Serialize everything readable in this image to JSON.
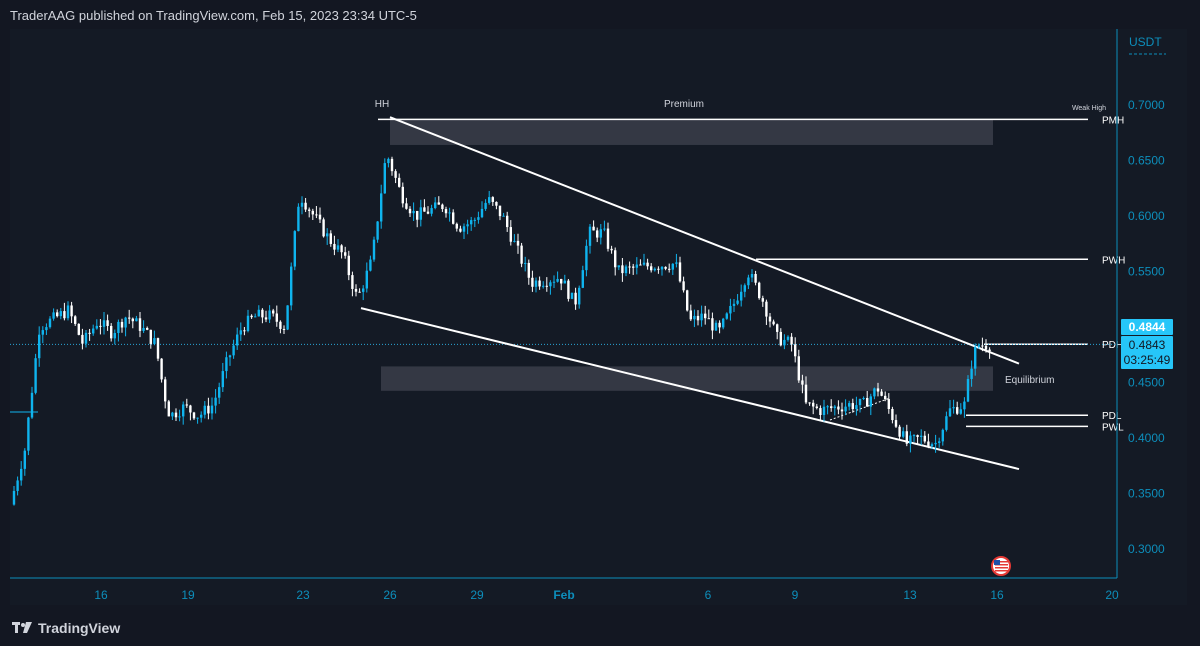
{
  "header": {
    "published_text": "TraderAAG published on TradingView.com, Feb 15, 2023 23:34 UTC-5"
  },
  "footer": {
    "brand": "TradingView",
    "logo_icon": "tradingview-logo-icon"
  },
  "colors": {
    "background": "#131722",
    "axis": "#0d8ebb",
    "up_candle": "#0fb4ee",
    "down_candle": "#ffffff",
    "last_price_bg": "#26c6f9",
    "zone_fill": "#3a3e4a",
    "line": "#ffffff",
    "text": "#d1d4dc"
  },
  "chart_data": {
    "type": "candlestick",
    "symbol_currency": "USDT",
    "timeframe_note": "2-hour candles (approx. 12 per day)",
    "ylim": [
      0.27,
      0.74
    ],
    "y_ticks": [
      "0.7000",
      "0.6500",
      "0.6000",
      "0.5500",
      "0.5000",
      "0.4500",
      "0.4000",
      "0.3500",
      "0.3000"
    ],
    "x_ticks": [
      "16",
      "19",
      "23",
      "26",
      "29",
      "Feb",
      "6",
      "9",
      "13",
      "16",
      "20"
    ],
    "grid": false,
    "last_price": "0.4844",
    "current_price": "0.4843",
    "countdown": "03:25:49",
    "horizontal_levels": [
      {
        "label": "PMH",
        "price": 0.687
      },
      {
        "label": "PWH",
        "price": 0.561
      },
      {
        "label": "PDH",
        "price": 0.4845
      },
      {
        "label": "PDL",
        "price": 0.4205
      },
      {
        "label": "PWL",
        "price": 0.4105
      }
    ],
    "zones": [
      {
        "top": 0.687,
        "bottom": 0.664,
        "from": "Jan 26",
        "to": "Feb 15"
      },
      {
        "top": 0.4645,
        "bottom": 0.4425,
        "from": "Jan 25",
        "to": "Feb 15"
      }
    ],
    "annotations": [
      "HH",
      "Premium",
      "Weak High",
      "Equilibrium"
    ],
    "trendlines": [
      {
        "name": "upper",
        "from": [
          "Jan 26",
          0.689
        ],
        "to": [
          "Feb 16",
          0.467
        ]
      },
      {
        "name": "lower",
        "from": [
          "Jan 25",
          0.517
        ],
        "to": [
          "Feb 16",
          0.372
        ]
      }
    ],
    "timeline": [
      [
        "Jan 13",
        0.34
      ],
      [
        "Jan 13.5",
        0.39
      ],
      [
        "Jan 14",
        0.5
      ],
      [
        "Jan 15",
        0.515
      ],
      [
        "Jan 15.5",
        0.485
      ],
      [
        "Jan 16",
        0.505
      ],
      [
        "Jan 16.5",
        0.495
      ],
      [
        "Jan 17",
        0.51
      ],
      [
        "Jan 17.5",
        0.5
      ],
      [
        "Jan 18",
        0.485
      ],
      [
        "Jan 18.3",
        0.44
      ],
      [
        "Jan 18.5",
        0.42
      ],
      [
        "Jan 19",
        0.428
      ],
      [
        "Jan 19.5",
        0.42
      ],
      [
        "Jan 20",
        0.43
      ],
      [
        "Jan 20.5",
        0.47
      ],
      [
        "Jan 21",
        0.5
      ],
      [
        "Jan 21.5",
        0.51
      ],
      [
        "Jan 22",
        0.51
      ],
      [
        "Jan 22.5",
        0.5
      ],
      [
        "Jan 23",
        0.62
      ],
      [
        "Jan 23.5",
        0.6
      ],
      [
        "Jan 24",
        0.58
      ],
      [
        "Jan 24.5",
        0.565
      ],
      [
        "Jan 25",
        0.525
      ],
      [
        "Jan 25.5",
        0.56
      ],
      [
        "Jan 26",
        0.657
      ],
      [
        "Jan 26.5",
        0.62
      ],
      [
        "Jan 27",
        0.6
      ],
      [
        "Jan 28",
        0.61
      ],
      [
        "Jan 28.5",
        0.59
      ],
      [
        "Jan 29",
        0.595
      ],
      [
        "Jan 29.5",
        0.615
      ],
      [
        "Jan 30",
        0.6
      ],
      [
        "Jan 31",
        0.54
      ],
      [
        "Feb 1",
        0.545
      ],
      [
        "Feb 1.5",
        0.52
      ],
      [
        "Feb 2",
        0.585
      ],
      [
        "Feb 2.5",
        0.585
      ],
      [
        "Feb 3",
        0.55
      ],
      [
        "Feb 4",
        0.555
      ],
      [
        "Feb 5",
        0.557
      ],
      [
        "Feb 5.5",
        0.505
      ],
      [
        "Feb 6",
        0.51
      ],
      [
        "Feb 6.5",
        0.495
      ],
      [
        "Feb 7",
        0.52
      ],
      [
        "Feb 7.5",
        0.55
      ],
      [
        "Feb 8",
        0.525
      ],
      [
        "Feb 8.5",
        0.49
      ],
      [
        "Feb 9",
        0.485
      ],
      [
        "Feb 9.5",
        0.43
      ],
      [
        "Feb 10",
        0.425
      ],
      [
        "Feb 11",
        0.43
      ],
      [
        "Feb 11.5",
        0.43
      ],
      [
        "Feb 12",
        0.445
      ],
      [
        "Feb 12.5",
        0.42
      ],
      [
        "Feb 13",
        0.395
      ],
      [
        "Feb 13.5",
        0.4
      ],
      [
        "Feb 14",
        0.395
      ],
      [
        "Feb 14.5",
        0.425
      ],
      [
        "Feb 15",
        0.43
      ],
      [
        "Feb 15.3",
        0.475
      ],
      [
        "Feb 15.5",
        0.484
      ]
    ]
  }
}
